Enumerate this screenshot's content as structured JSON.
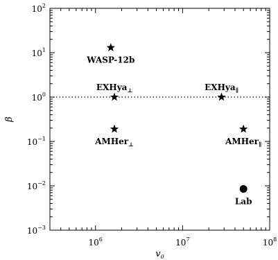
{
  "chart_data": {
    "type": "scatter",
    "xlabel": "v",
    "xlabel_sub": "0",
    "ylabel": "β",
    "xscale": "log",
    "yscale": "log",
    "xlim": [
      300000,
      100000000
    ],
    "ylim": [
      0.001,
      100
    ],
    "x_ticks": [
      {
        "value": 1000000,
        "base": "10",
        "exp": "6"
      },
      {
        "value": 10000000,
        "base": "10",
        "exp": "7"
      },
      {
        "value": 100000000,
        "base": "10",
        "exp": "8"
      }
    ],
    "y_ticks": [
      {
        "value": 0.001,
        "base": "10",
        "exp": "−3"
      },
      {
        "value": 0.01,
        "base": "10",
        "exp": "−2"
      },
      {
        "value": 0.1,
        "base": "10",
        "exp": "−1"
      },
      {
        "value": 1,
        "base": "10",
        "exp": "0"
      },
      {
        "value": 10,
        "base": "10",
        "exp": "1"
      },
      {
        "value": 100,
        "base": "10",
        "exp": "2"
      }
    ],
    "reference_line": {
      "y": 1,
      "style": "dotted"
    },
    "points": [
      {
        "name": "WASP-12b",
        "sub": "",
        "x": 1500000,
        "y": 13,
        "marker": "star",
        "label_pos": "below"
      },
      {
        "name": "EXHya",
        "sub": "⊥",
        "x": 1650000,
        "y": 1.0,
        "marker": "star",
        "label_pos": "above"
      },
      {
        "name": "EXHya",
        "sub": "∥",
        "x": 28000000,
        "y": 1.0,
        "marker": "star",
        "label_pos": "above"
      },
      {
        "name": "AMHer",
        "sub": "⊥",
        "x": 1650000,
        "y": 0.19,
        "marker": "star",
        "label_pos": "below"
      },
      {
        "name": "AMHer",
        "sub": "∥",
        "x": 50000000,
        "y": 0.19,
        "marker": "star",
        "label_pos": "below"
      },
      {
        "name": "Lab",
        "sub": "",
        "x": 50000000,
        "y": 0.0085,
        "marker": "circle",
        "label_pos": "below"
      }
    ]
  }
}
